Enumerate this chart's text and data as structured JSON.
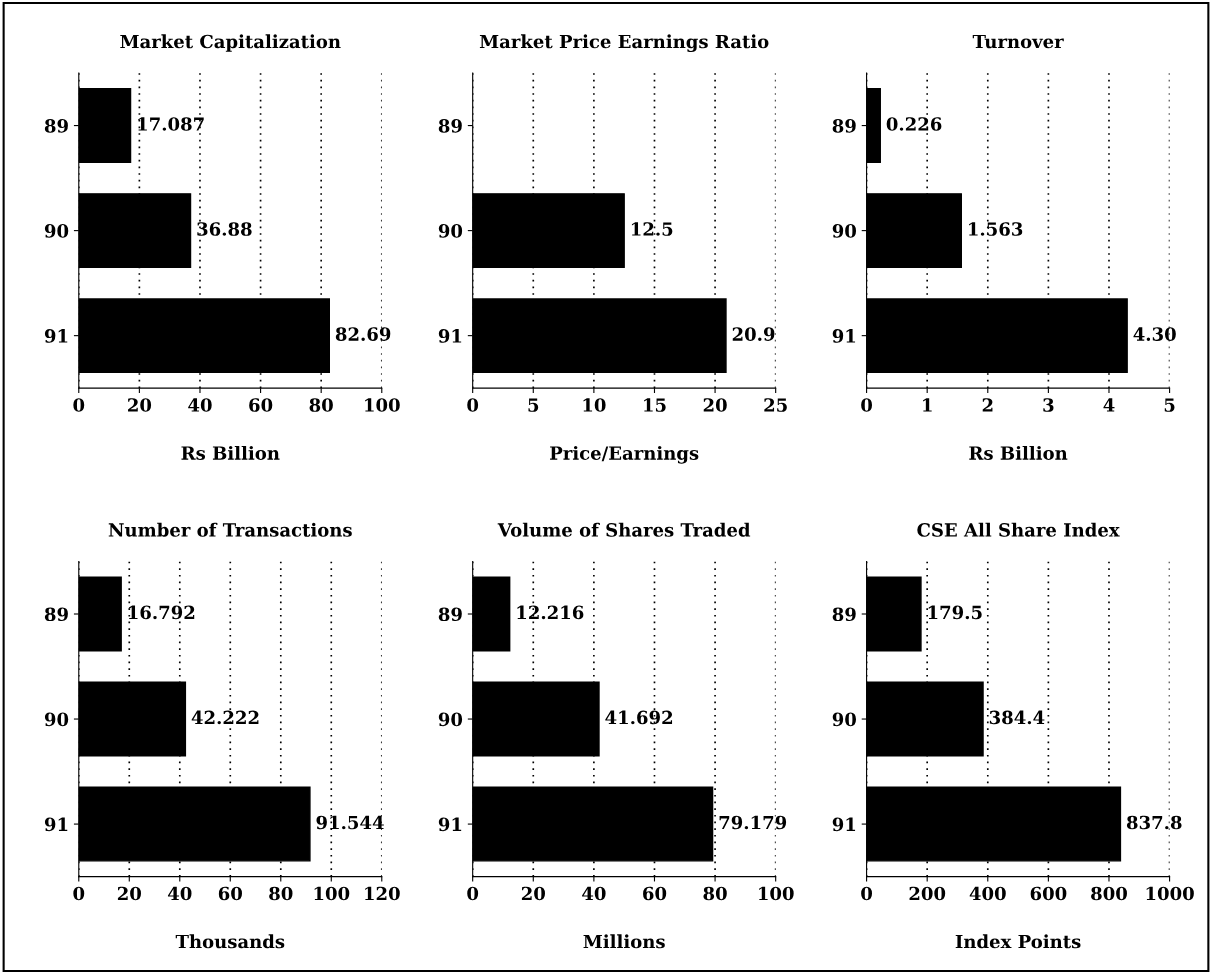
{
  "chart_data": [
    {
      "type": "bar",
      "orientation": "horizontal",
      "title": "Market Capitalization",
      "xlabel": "Rs Billion",
      "categories": [
        "89",
        "90",
        "91"
      ],
      "values": [
        17.087,
        36.88,
        82.69
      ],
      "color": "#000000",
      "xlim": [
        0,
        100
      ],
      "xticks": [
        0,
        20,
        40,
        60,
        80,
        100
      ],
      "grid": "x",
      "data_labels": true
    },
    {
      "type": "bar",
      "orientation": "horizontal",
      "title": "Market Price Earnings Ratio",
      "xlabel": "Price/Earnings",
      "categories": [
        "89",
        "90",
        "91"
      ],
      "values": [
        null,
        12.5,
        20.9
      ],
      "value_labels": [
        null,
        "12.5",
        "20.9"
      ],
      "color": "#000000",
      "xlim": [
        0,
        25
      ],
      "xticks": [
        0,
        5,
        10,
        15,
        20,
        25
      ],
      "grid": "x"
    },
    {
      "type": "bar",
      "orientation": "horizontal",
      "title": "Turnover",
      "xlabel": "Rs Billion",
      "categories": [
        "89",
        "90",
        "91"
      ],
      "values": [
        0.226,
        1.563,
        4.3
      ],
      "value_labels": [
        "0.226",
        "1.563",
        "4.30"
      ],
      "color": "#000000",
      "xlim": [
        0,
        5
      ],
      "xticks": [
        0,
        1,
        2,
        3,
        4,
        5
      ],
      "grid": "x"
    },
    {
      "type": "bar",
      "orientation": "horizontal",
      "title": "Number of Transactions",
      "xlabel": "Thousands",
      "categories": [
        "89",
        "90",
        "91"
      ],
      "values": [
        16.792,
        42.222,
        91.544
      ],
      "value_labels": [
        "16.792",
        "42.222",
        "91.544"
      ],
      "color": "#000000",
      "xlim": [
        0,
        120
      ],
      "xticks": [
        0,
        20,
        40,
        60,
        80,
        100,
        120
      ],
      "grid": "x"
    },
    {
      "type": "bar",
      "orientation": "horizontal",
      "title": "Volume of Shares Traded",
      "xlabel": "Millions",
      "categories": [
        "89",
        "90",
        "91"
      ],
      "values": [
        12.216,
        41.692,
        79.179
      ],
      "value_labels": [
        "12.216",
        "41.692",
        "79.179"
      ],
      "color": "#000000",
      "xlim": [
        0,
        100
      ],
      "xticks": [
        0,
        20,
        40,
        60,
        80,
        100
      ],
      "grid": "x"
    },
    {
      "type": "bar",
      "orientation": "horizontal",
      "title": "CSE All Share Index",
      "xlabel": "Index Points",
      "categories": [
        "89",
        "90",
        "91"
      ],
      "values": [
        179.5,
        384.4,
        837.8
      ],
      "data_labels": true,
      "color": "#000000",
      "xlim": [
        0,
        1000
      ],
      "xticks": [
        0,
        200,
        400,
        600,
        800,
        1000
      ],
      "grid": "x"
    }
  ]
}
